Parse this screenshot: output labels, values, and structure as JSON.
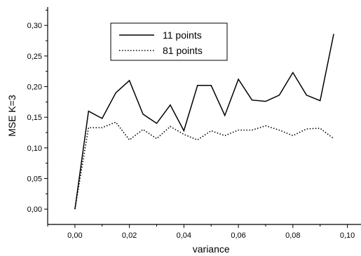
{
  "chart_data": {
    "type": "line",
    "title": "",
    "xlabel": "variance",
    "ylabel": "MSE K=3",
    "xlim": [
      -0.01,
      0.105
    ],
    "ylim": [
      -0.025,
      0.33
    ],
    "x_ticks": [
      0.0,
      0.02,
      0.04,
      0.06,
      0.08,
      0.1
    ],
    "x_tick_labels": [
      "0,00",
      "0,02",
      "0,04",
      "0,06",
      "0,08",
      "0,10"
    ],
    "y_ticks": [
      0.0,
      0.05,
      0.1,
      0.15,
      0.2,
      0.25,
      0.3
    ],
    "y_tick_labels": [
      "0,00",
      "0,05",
      "0,10",
      "0,15",
      "0,20",
      "0,25",
      "0,30"
    ],
    "grid": false,
    "legend_position": "top-center",
    "series": [
      {
        "name": "11 points",
        "style": "solid",
        "color": "#000000",
        "x": [
          0.0,
          0.005,
          0.01,
          0.015,
          0.02,
          0.025,
          0.03,
          0.035,
          0.04,
          0.045,
          0.05,
          0.055,
          0.06,
          0.065,
          0.07,
          0.075,
          0.08,
          0.085,
          0.09,
          0.095
        ],
        "y": [
          0.0,
          0.16,
          0.148,
          0.19,
          0.21,
          0.155,
          0.14,
          0.17,
          0.128,
          0.202,
          0.202,
          0.153,
          0.212,
          0.178,
          0.176,
          0.186,
          0.223,
          0.186,
          0.177,
          0.286
        ]
      },
      {
        "name": "81 points",
        "style": "dotted",
        "color": "#000000",
        "x": [
          0.0,
          0.005,
          0.01,
          0.015,
          0.02,
          0.025,
          0.03,
          0.035,
          0.04,
          0.045,
          0.05,
          0.055,
          0.06,
          0.065,
          0.07,
          0.075,
          0.08,
          0.085,
          0.09,
          0.095
        ],
        "y": [
          0.0,
          0.133,
          0.133,
          0.142,
          0.113,
          0.13,
          0.115,
          0.135,
          0.122,
          0.113,
          0.128,
          0.12,
          0.129,
          0.129,
          0.136,
          0.129,
          0.12,
          0.131,
          0.132,
          0.115
        ]
      }
    ]
  }
}
